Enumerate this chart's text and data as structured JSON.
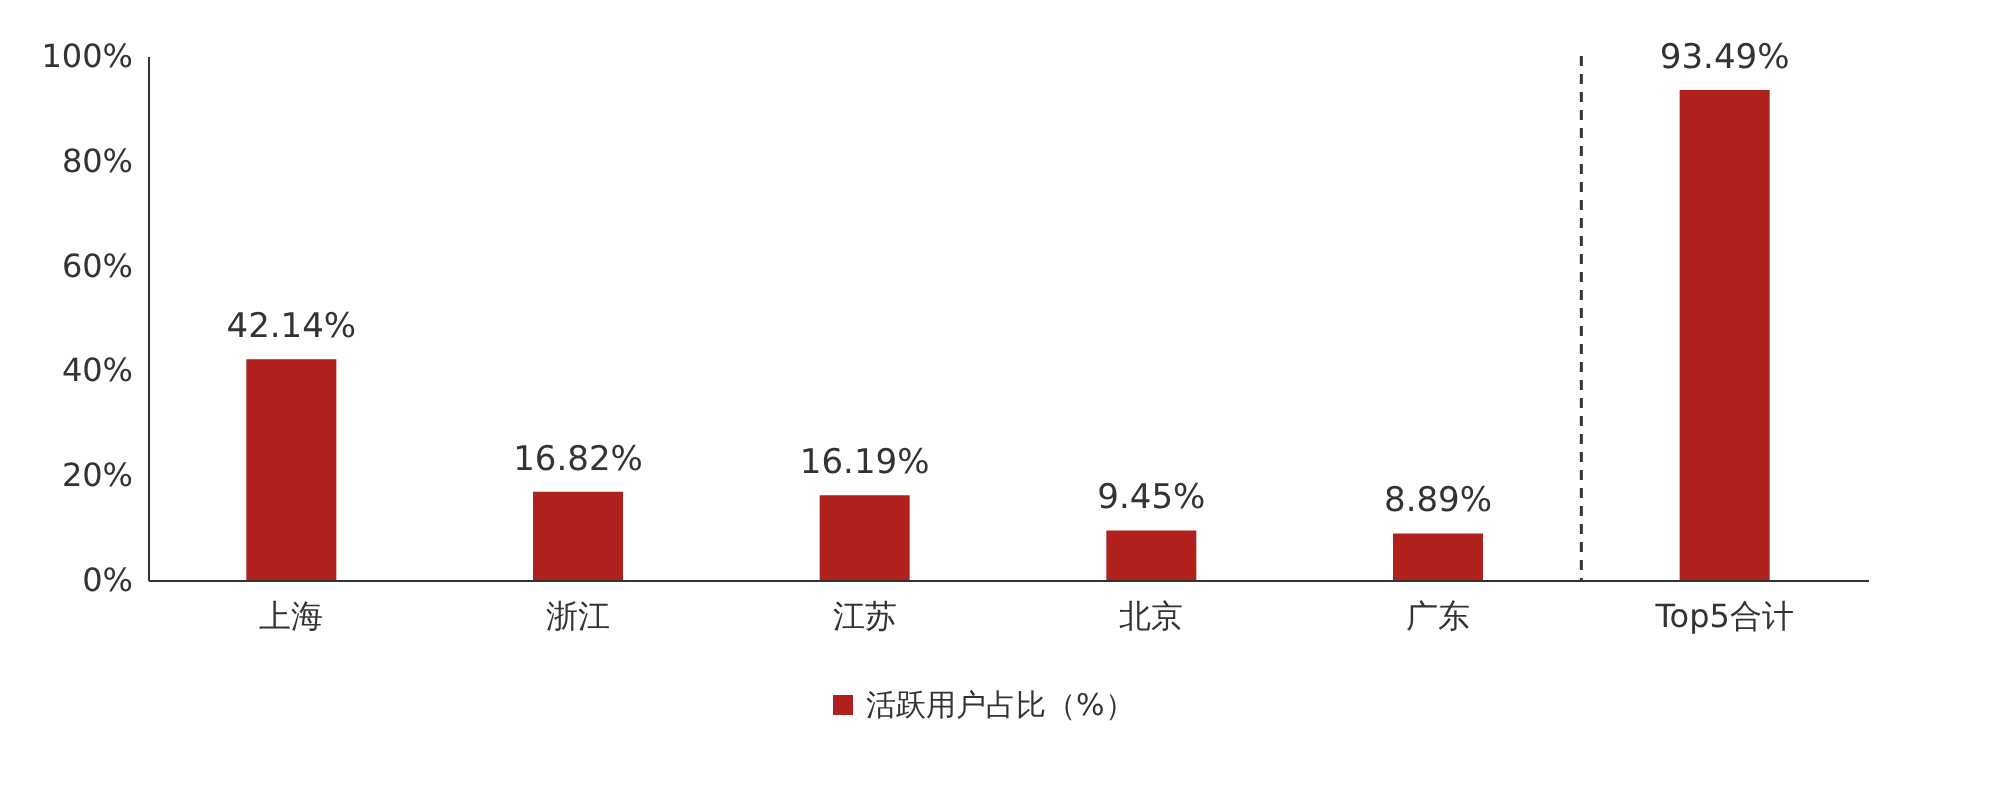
{
  "chart_data": {
    "type": "bar",
    "categories": [
      "上海",
      "浙江",
      "江苏",
      "北京",
      "广东",
      "Top5合计"
    ],
    "series": [
      {
        "name": "活跃用户占比（%）",
        "color": "#b0201c",
        "values": [
          42.14,
          16.82,
          16.19,
          9.45,
          8.89,
          93.49
        ],
        "value_labels": [
          "42.14%",
          "16.82%",
          "16.19%",
          "9.45%",
          "8.89%",
          "93.49%"
        ]
      }
    ],
    "ylim": [
      0,
      100
    ],
    "yticks": [
      {
        "value": 0,
        "label": "0%"
      },
      {
        "value": 20,
        "label": "20%"
      },
      {
        "value": 40,
        "label": "40%"
      },
      {
        "value": 60,
        "label": "60%"
      },
      {
        "value": 80,
        "label": "80%"
      },
      {
        "value": 100,
        "label": "100%"
      }
    ],
    "grid": false,
    "legend": "bottom"
  }
}
